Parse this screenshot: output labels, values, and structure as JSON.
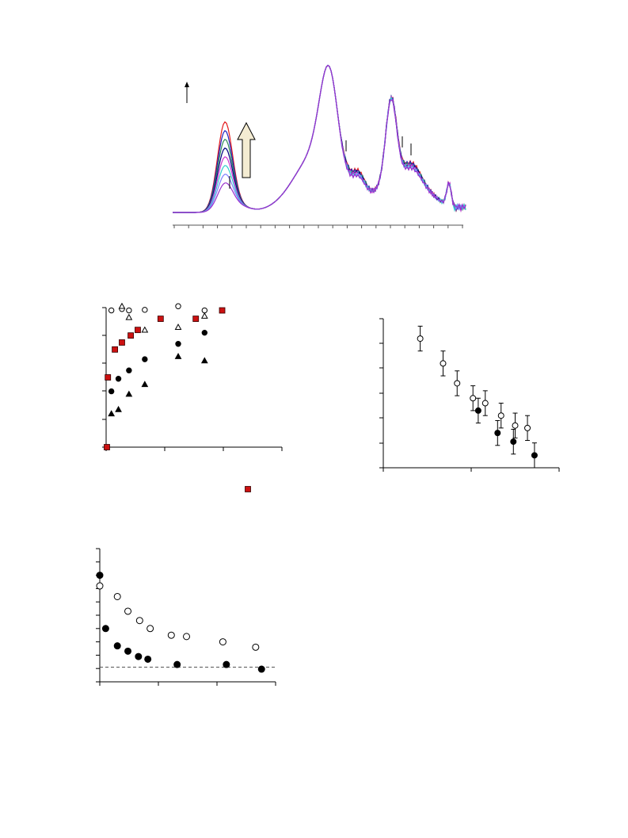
{
  "colors": {
    "black": "#000000",
    "red_marker": "#cc1111",
    "arrow_fill": "#f4ecd2"
  },
  "chart_data": [
    {
      "id": "spectra",
      "type": "line",
      "grid": false,
      "legend": "none",
      "arrow_up_icon": "arrow-up-icon",
      "series": [
        {
          "color": "#e41a1c"
        },
        {
          "color": "#1f1fbf"
        },
        {
          "color": "#2e8b57"
        },
        {
          "color": "#000080"
        },
        {
          "color": "#cc33cc"
        },
        {
          "color": "#33cccc"
        },
        {
          "color": "#7f7fff"
        },
        {
          "color": "#9932cc"
        }
      ]
    },
    {
      "id": "scatter_left",
      "type": "scatter",
      "grid": false,
      "xlim": [
        0,
        10
      ],
      "ylim": [
        0,
        5
      ],
      "series": [
        {
          "marker": "circle-open",
          "points": [
            [
              0.3,
              4.9
            ],
            [
              0.9,
              4.95
            ],
            [
              1.3,
              4.9
            ],
            [
              2.2,
              4.92
            ],
            [
              4.1,
              5.05
            ],
            [
              5.6,
              4.9
            ]
          ]
        },
        {
          "marker": "triangle-open",
          "points": [
            [
              0.9,
              5.05
            ],
            [
              1.3,
              4.65
            ],
            [
              2.2,
              4.2
            ],
            [
              4.1,
              4.3
            ],
            [
              5.6,
              4.7
            ]
          ]
        },
        {
          "marker": "square-red",
          "points": [
            [
              -0.2,
              0.0
            ],
            [
              0.1,
              2.5
            ],
            [
              0.5,
              3.5
            ],
            [
              0.9,
              3.75
            ],
            [
              1.4,
              4.0
            ],
            [
              1.8,
              4.2
            ],
            [
              3.1,
              4.6
            ],
            [
              5.1,
              4.6
            ],
            [
              6.6,
              4.9
            ]
          ]
        },
        {
          "marker": "circle-filled",
          "points": [
            [
              0.3,
              2.0
            ],
            [
              0.7,
              2.45
            ],
            [
              1.3,
              2.75
            ],
            [
              2.2,
              3.15
            ],
            [
              4.1,
              3.7
            ],
            [
              5.6,
              4.1
            ]
          ]
        },
        {
          "marker": "triangle-filled",
          "points": [
            [
              0.3,
              1.2
            ],
            [
              0.7,
              1.35
            ],
            [
              1.3,
              1.9
            ],
            [
              2.2,
              2.25
            ],
            [
              4.1,
              3.25
            ],
            [
              5.6,
              3.1
            ]
          ]
        }
      ],
      "legend_marker": "square-red"
    },
    {
      "id": "scatter_right",
      "type": "scatter",
      "grid": false,
      "xlim": [
        0,
        10
      ],
      "ylim": [
        0,
        6
      ],
      "series": [
        {
          "marker": "circle-open",
          "points": [
            [
              2.1,
              5.2,
              0.5
            ],
            [
              3.4,
              4.2,
              0.5
            ],
            [
              4.2,
              3.4,
              0.5
            ],
            [
              5.1,
              2.8,
              0.5
            ],
            [
              5.8,
              2.6,
              0.5
            ],
            [
              6.7,
              2.1,
              0.5
            ],
            [
              7.5,
              1.7,
              0.5
            ],
            [
              8.2,
              1.6,
              0.5
            ]
          ]
        },
        {
          "marker": "circle-filled",
          "points": [
            [
              5.4,
              2.3,
              0.5
            ],
            [
              6.5,
              1.4,
              0.5
            ],
            [
              7.4,
              1.05,
              0.5
            ],
            [
              8.6,
              0.5,
              0.5
            ]
          ]
        }
      ]
    },
    {
      "id": "scatter_bottom",
      "type": "scatter",
      "grid": false,
      "xlim": [
        0,
        15
      ],
      "ylim": [
        0,
        10
      ],
      "reference_line": 1.1,
      "series": [
        {
          "marker": "circle-open",
          "points": [
            [
              0,
              7.2
            ],
            [
              1.5,
              6.4
            ],
            [
              2.4,
              5.3
            ],
            [
              3.4,
              4.6
            ],
            [
              4.3,
              4.0
            ],
            [
              6.1,
              3.5
            ],
            [
              7.4,
              3.4
            ],
            [
              10.5,
              3.0
            ],
            [
              13.3,
              2.6
            ]
          ]
        },
        {
          "marker": "circle-filled",
          "points": [
            [
              0,
              8.0
            ],
            [
              0.5,
              4.0
            ],
            [
              1.5,
              2.7
            ],
            [
              2.4,
              2.3
            ],
            [
              3.3,
              1.9
            ],
            [
              4.1,
              1.7
            ],
            [
              6.6,
              1.3
            ],
            [
              10.8,
              1.3
            ],
            [
              13.8,
              0.95
            ]
          ]
        }
      ]
    }
  ]
}
